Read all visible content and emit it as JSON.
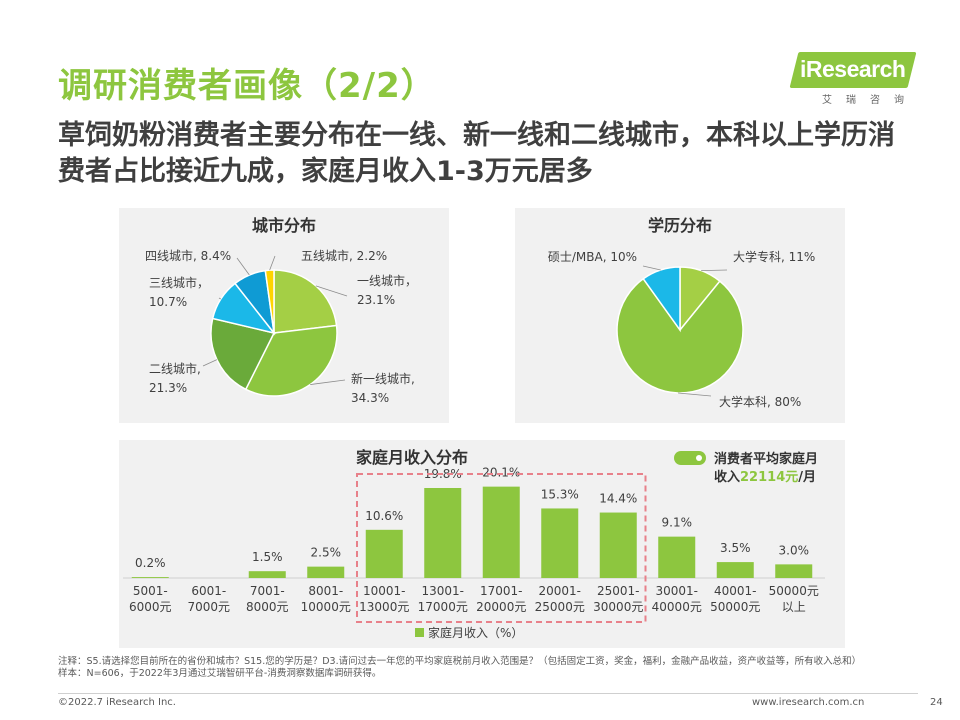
{
  "header": {
    "title": "调研消费者画像（2/2）",
    "subtitle": "草饲奶粉消费者主要分布在一线、新一线和二线城市，本科以上学历消费者占比接近九成，家庭月收入1-3万元居多",
    "logo_text": "iResearch",
    "logo_cn": "艾瑞咨询"
  },
  "colors": {
    "accent": "#8dc63f",
    "highlight_box": "#e8818a",
    "panel_bg": "#f1f1f1"
  },
  "chart_data": [
    {
      "type": "pie",
      "title": "城市分布",
      "slices": [
        {
          "label": "一线城市",
          "value": 23.1,
          "display": "23.1%",
          "color": "#a4cf45"
        },
        {
          "label": "新一线城市",
          "value": 34.3,
          "display": "34.3%",
          "color": "#8dc63f"
        },
        {
          "label": "二线城市",
          "value": 21.3,
          "display": "21.3%",
          "color": "#6aaa3a"
        },
        {
          "label": "三线城市",
          "value": 10.7,
          "display": "10.7%",
          "color": "#1bb8e8"
        },
        {
          "label": "四线城市",
          "value": 8.4,
          "display": "8.4%",
          "color": "#0f9bd4"
        },
        {
          "label": "五线城市",
          "value": 2.2,
          "display": "2.2%",
          "color": "#ffd400"
        }
      ]
    },
    {
      "type": "pie",
      "title": "学历分布",
      "slices": [
        {
          "label": "大学专科",
          "value": 11,
          "display": "11%",
          "color": "#a4cf45"
        },
        {
          "label": "大学本科",
          "value": 80,
          "display": "80%",
          "color": "#8dc63f"
        },
        {
          "label": "硕士/MBA",
          "value": 10,
          "display": "10%",
          "color": "#1bb8e8"
        }
      ]
    },
    {
      "type": "bar",
      "title": "家庭月收入分布",
      "categories": [
        [
          "5001-",
          "6000元"
        ],
        [
          "6001-",
          "7000元"
        ],
        [
          "7001-",
          "8000元"
        ],
        [
          "8001-",
          "10000元"
        ],
        [
          "10001-",
          "13000元"
        ],
        [
          "13001-",
          "17000元"
        ],
        [
          "17001-",
          "20000元"
        ],
        [
          "20001-",
          "25000元"
        ],
        [
          "25001-",
          "30000元"
        ],
        [
          "30001-",
          "40000元"
        ],
        [
          "40001-",
          "50000元"
        ],
        [
          "50000元",
          "以上"
        ]
      ],
      "series": [
        {
          "name": "家庭月收入（%）",
          "values": [
            0.2,
            0,
            1.5,
            2.5,
            10.6,
            19.8,
            20.1,
            15.3,
            14.4,
            9.1,
            3.5,
            3.0
          ],
          "labels": [
            "0.2%",
            "",
            "1.5%",
            "2.5%",
            "10.6%",
            "19.8%",
            "20.1%",
            "15.3%",
            "14.4%",
            "9.1%",
            "3.5%",
            "3.0%"
          ]
        }
      ],
      "highlight_range": [
        4,
        8
      ],
      "ylim": [
        0,
        22
      ],
      "grid": false,
      "legend_position": "bottom"
    }
  ],
  "avg_income": {
    "line1": "消费者平均家庭月",
    "line2_prefix": "收入",
    "value": "22114元",
    "line2_suffix": "/月"
  },
  "notes": {
    "line1": "注释：S5.请选择您目前所在的省份和城市？S15.您的学历是？D3.请问过去一年您的平均家庭税前月收入范围是？（包括固定工资，奖金，福利，金融产品收益，资产收益等，所有收入总和）",
    "line2": "样本：N=606，于2022年3月通过艾瑞智研平台-消费洞察数据库调研获得。"
  },
  "footer": {
    "copyright": "©2022.7 iResearch Inc.",
    "website": "www.iresearch.com.cn",
    "page": "24"
  }
}
